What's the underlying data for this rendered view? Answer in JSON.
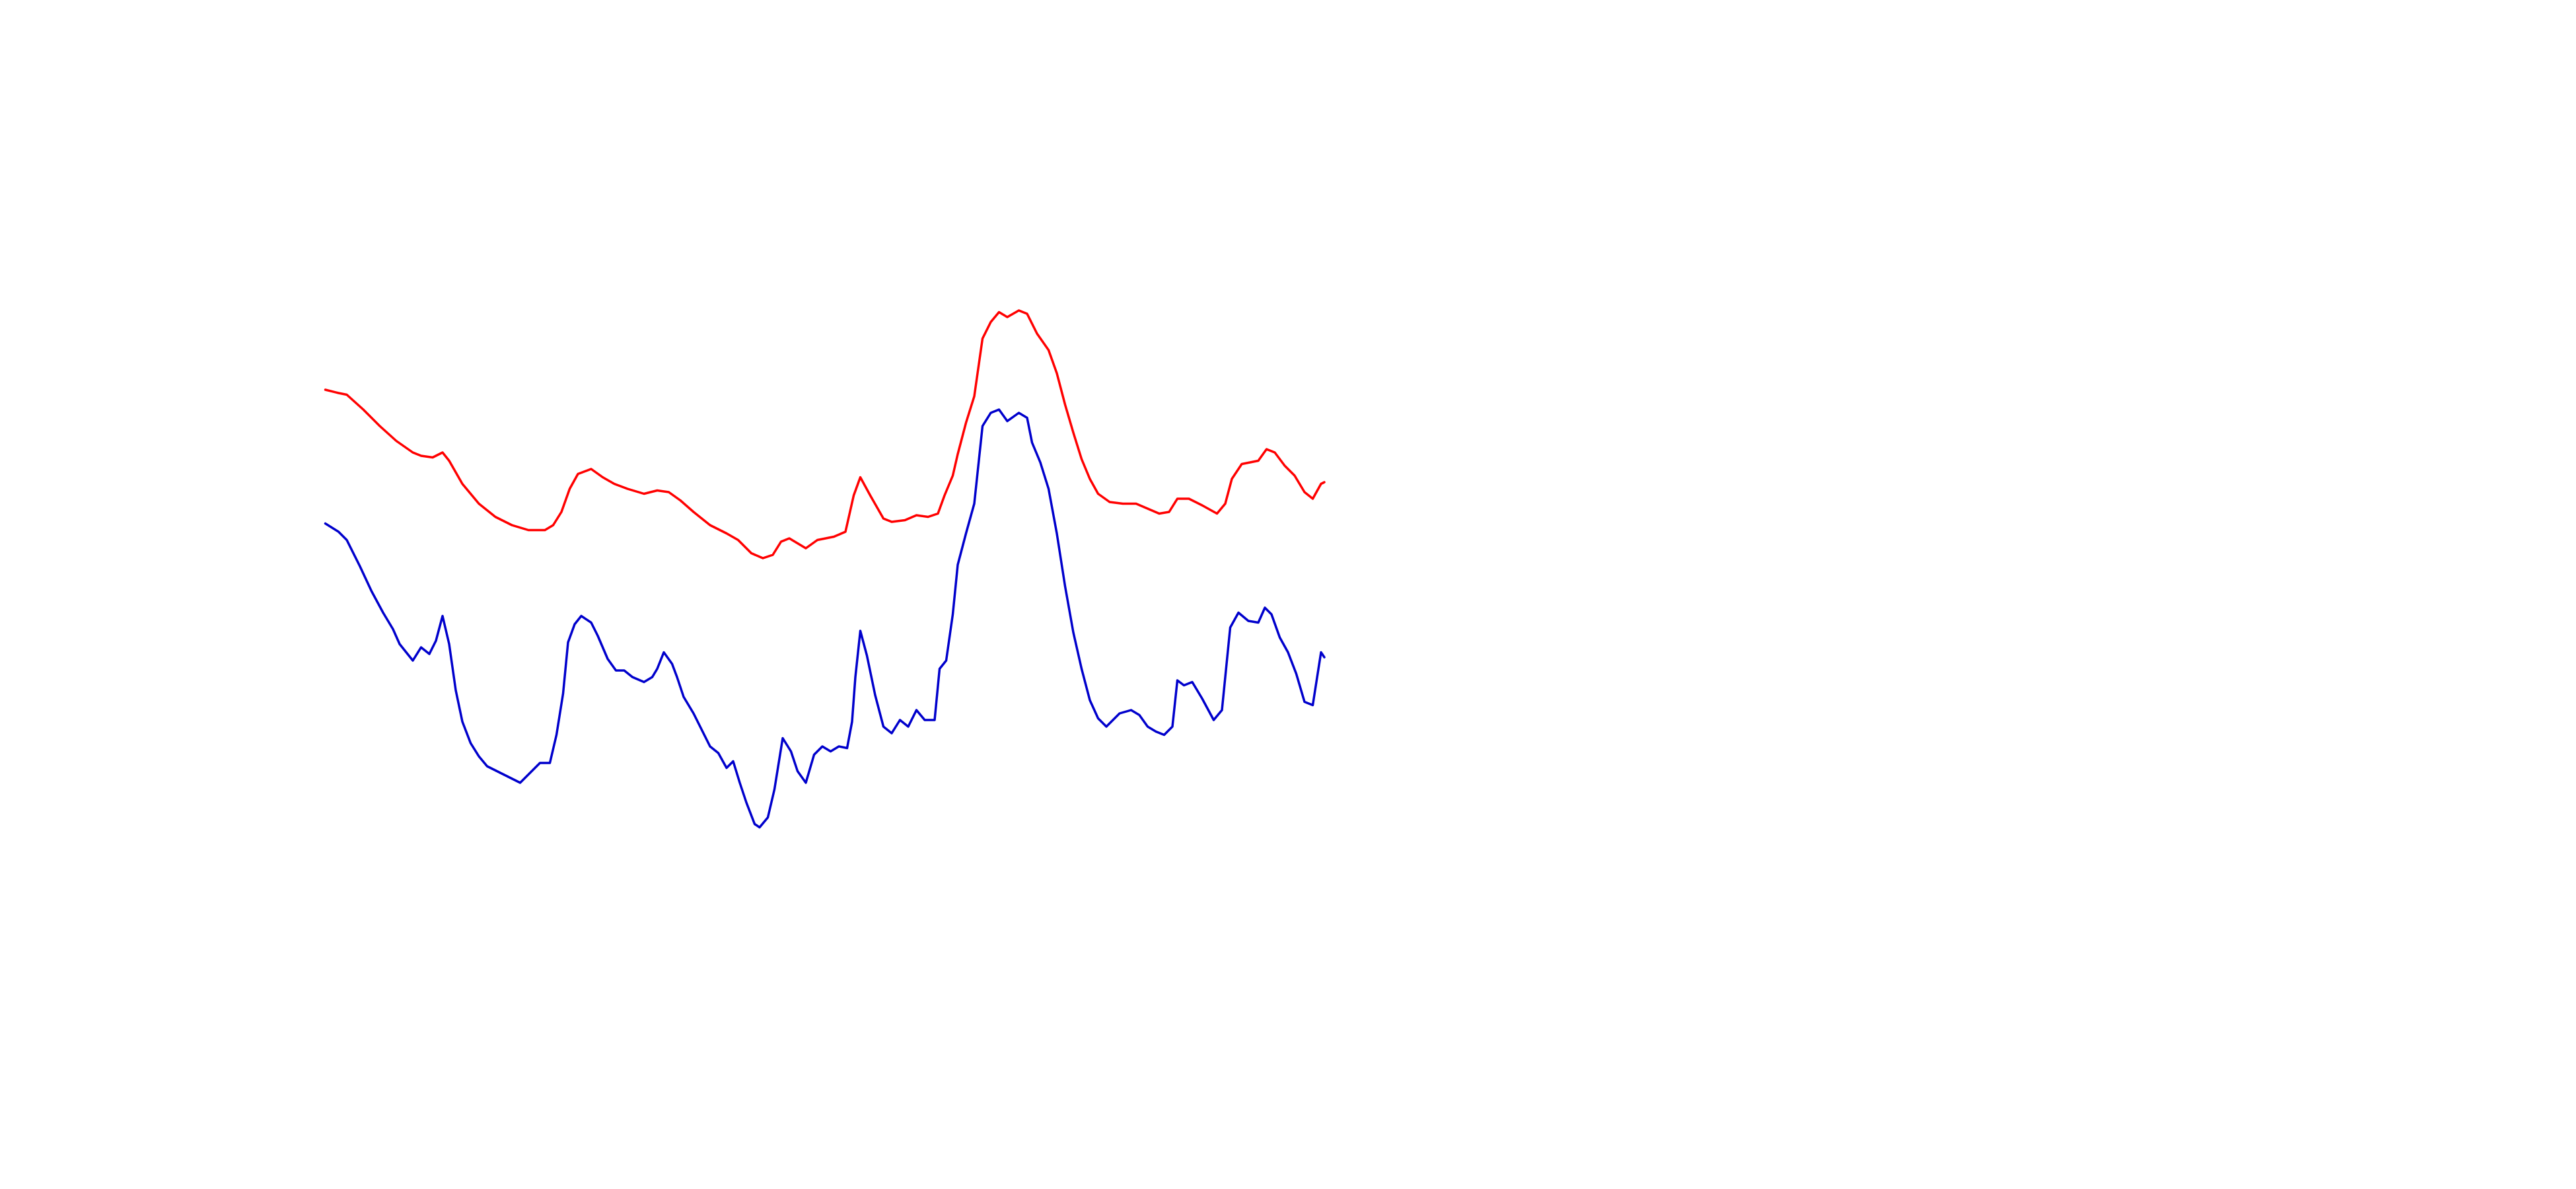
{
  "chart_data": {
    "type": "line",
    "xlim": [
      0,
      1560
    ],
    "ylim": [
      0,
      720
    ],
    "series": [
      {
        "color": "#ff0000",
        "x": [
          197,
          205,
          210,
          220,
          230,
          240,
          250,
          255,
          262,
          268,
          272,
          280,
          290,
          300,
          310,
          320,
          330,
          335,
          340,
          345,
          350,
          358,
          365,
          372,
          380,
          390,
          398,
          405,
          412,
          420,
          430,
          440,
          447,
          455,
          462,
          468,
          473,
          478,
          488,
          495,
          505,
          512,
          517,
          521,
          527,
          535,
          540,
          548,
          555,
          562,
          568,
          572,
          577,
          580,
          585,
          590,
          595,
          600,
          605,
          610,
          617,
          622,
          628,
          635,
          640,
          645,
          650,
          655,
          660,
          665,
          672,
          680,
          688,
          695,
          702,
          708,
          713,
          720,
          728,
          737,
          742,
          746,
          752,
          762,
          767,
          772,
          778,
          784,
          790,
          795,
          800,
          802
        ],
        "values": [
          484,
          482,
          481,
          472,
          462,
          453,
          446,
          444,
          443,
          446,
          441,
          427,
          415,
          407,
          402,
          399,
          399,
          402,
          410,
          424,
          433,
          436,
          431,
          427,
          424,
          421,
          423,
          422,
          417,
          410,
          402,
          397,
          393,
          385,
          382,
          384,
          392,
          394,
          388,
          393,
          395,
          398,
          420,
          431,
          420,
          406,
          404,
          405,
          408,
          407,
          409,
          420,
          432,
          445,
          464,
          480,
          515,
          525,
          531,
          528,
          532,
          530,
          518,
          508,
          494,
          475,
          458,
          442,
          430,
          421,
          416,
          415,
          415,
          412,
          409,
          410,
          418,
          418,
          414,
          409,
          415,
          430,
          439,
          441,
          448,
          446,
          438,
          432,
          422,
          418,
          427,
          428
        ]
      },
      {
        "color": "#0000cc",
        "x": [
          197,
          205,
          210,
          218,
          225,
          232,
          238,
          242,
          250,
          255,
          260,
          264,
          268,
          272,
          276,
          280,
          285,
          290,
          295,
          305,
          315,
          320,
          327,
          333,
          337,
          341,
          344,
          348,
          352,
          358,
          362,
          368,
          373,
          378,
          383,
          390,
          395,
          398,
          402,
          407,
          410,
          414,
          420,
          425,
          430,
          435,
          440,
          444,
          448,
          452,
          457,
          460,
          465,
          469,
          474,
          479,
          483,
          488,
          493,
          498,
          503,
          508,
          513,
          516,
          518,
          521,
          525,
          530,
          535,
          540,
          545,
          550,
          555,
          560,
          566,
          569,
          573,
          577,
          580,
          585,
          590,
          595,
          600,
          605,
          610,
          617,
          622,
          625,
          630,
          635,
          640,
          645,
          650,
          655,
          660,
          665,
          670,
          678,
          685,
          690,
          695,
          700,
          705,
          710,
          713,
          717,
          722,
          728,
          735,
          740,
          745,
          750,
          756,
          762,
          766,
          770,
          775,
          780,
          785,
          790,
          795,
          800,
          802
        ],
        "values": [
          403,
          398,
          393,
          377,
          362,
          349,
          339,
          330,
          320,
          328,
          324,
          332,
          347,
          330,
          302,
          283,
          270,
          262,
          256,
          251,
          246,
          251,
          258,
          258,
          275,
          300,
          331,
          342,
          347,
          343,
          335,
          321,
          314,
          314,
          310,
          307,
          310,
          315,
          325,
          318,
          310,
          298,
          288,
          278,
          268,
          264,
          255,
          259,
          246,
          234,
          221,
          219,
          225,
          242,
          273,
          265,
          253,
          246,
          263,
          268,
          265,
          268,
          267,
          283,
          310,
          338,
          323,
          299,
          280,
          276,
          284,
          280,
          290,
          284,
          284,
          315,
          320,
          348,
          378,
          397,
          415,
          462,
          470,
          472,
          465,
          470,
          467,
          452,
          440,
          424,
          397,
          365,
          337,
          315,
          296,
          285,
          280,
          288,
          290,
          287,
          280,
          277,
          275,
          280,
          308,
          305,
          307,
          297,
          284,
          290,
          340,
          349,
          344,
          343,
          352,
          348,
          334,
          325,
          312,
          295,
          293,
          325,
          322
        ]
      }
    ]
  }
}
